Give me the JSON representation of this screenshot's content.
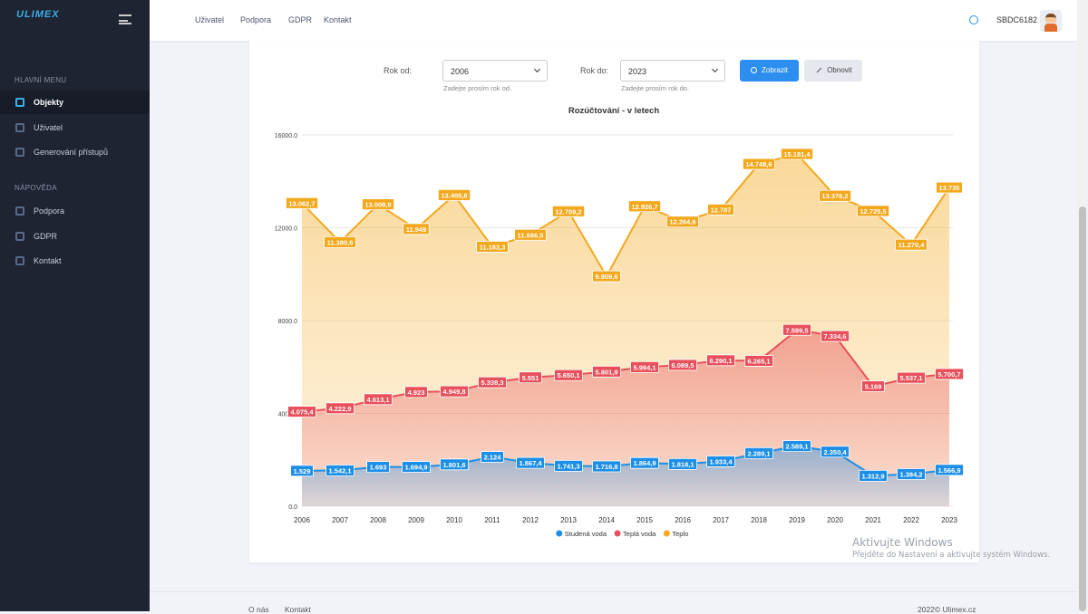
{
  "sidebar": {
    "brand": "ULIMEX",
    "sections": [
      {
        "title": "HLAVNÍ MENU",
        "items": [
          "Objekty",
          "Uživatel",
          "Generování přístupů"
        ]
      },
      {
        "title": "NÁPOVĚDA",
        "items": [
          "Podpora",
          "GDPR",
          "Kontakt"
        ]
      }
    ]
  },
  "topbar": {
    "links": [
      "Uživatel",
      "Podpora",
      "GDPR",
      "Kontakt"
    ],
    "user": "SBDC6182"
  },
  "filter": {
    "from_label": "Rok od:",
    "from_value": "2006",
    "from_hint": "Zadejte prosím rok od.",
    "to_label": "Rok do:",
    "to_value": "2023",
    "to_hint": "Zadejte prosím rok do.",
    "show_button": "Zobrazit",
    "reset_button": "Obnovit"
  },
  "chart_data": {
    "type": "area",
    "title": "Rozúčtování - v letech",
    "categories": [
      "2006",
      "2007",
      "2008",
      "2009",
      "2010",
      "2011",
      "2012",
      "2013",
      "2014",
      "2015",
      "2016",
      "2017",
      "2018",
      "2019",
      "2020",
      "2021",
      "2022",
      "2023"
    ],
    "ylim": [
      0,
      16000
    ],
    "yticks": [
      {
        "value": 0,
        "label": "0.0"
      },
      {
        "value": 4000,
        "label": "4000.0"
      },
      {
        "value": 8000,
        "label": "8000.0"
      },
      {
        "value": 12000,
        "label": "12000.0"
      },
      {
        "value": 16000,
        "label": "16000.0"
      }
    ],
    "grid": true,
    "legend": "bottom",
    "series": [
      {
        "name": "Studená voda",
        "color": "#1e8fe6",
        "values": [
          1529,
          1542.1,
          1693,
          1694.9,
          1801.6,
          2124,
          1867.4,
          1741.3,
          1716.8,
          1864.9,
          1818.1,
          1933.4,
          2289.1,
          2589.1,
          2350.4,
          1312.9,
          1384.2,
          1566.9
        ],
        "value_labels": [
          "1.529",
          "1.542,1",
          "1.693",
          "1.694,9",
          "1.801,6",
          "2.124",
          "1.867,4",
          "1.741,3",
          "1.716,8",
          "1.864,9",
          "1.818,1",
          "1.933,4",
          "2.289,1",
          "2.589,1",
          "2.350,4",
          "1.312,9",
          "1.384,2",
          "1.566,9"
        ]
      },
      {
        "name": "Teplá voda",
        "color": "#e8505b",
        "values": [
          4075.4,
          4222.9,
          4613.1,
          4923,
          4949.8,
          5338.3,
          5551,
          5650.1,
          5801.9,
          5994.1,
          6089.5,
          6290.1,
          6265.1,
          7599.5,
          7334.6,
          5169,
          5537.1,
          5700.7
        ],
        "value_labels": [
          "4.075,4",
          "4.222,9",
          "4.613,1",
          "4.923",
          "4.949,8",
          "5.338,3",
          "5.551",
          "5.650,1",
          "5.801,9",
          "5.994,1",
          "6.089,5",
          "6.290,1",
          "6.265,1",
          "7.599,5",
          "7.334,6",
          "5.169",
          "5.537,1",
          "5.700,7"
        ]
      },
      {
        "name": "Teplo",
        "color": "#f3a81d",
        "values": [
          13062.7,
          11380.6,
          13008.9,
          11949,
          13408.8,
          11182.3,
          11696.5,
          12709.2,
          9909.6,
          12926.7,
          12264.6,
          12787,
          14748.6,
          15181.4,
          13376.2,
          12725.5,
          11270.4,
          13735
        ],
        "value_labels": [
          "13.062,7",
          "11.380,6",
          "13.008,9",
          "11.949",
          "13.408,8",
          "11.182,3",
          "11.696,5",
          "12.709,2",
          "9.909,6",
          "12.926,7",
          "12.264,6",
          "12.787",
          "14.748,6",
          "15.181,4",
          "13.376,2",
          "12.725,5",
          "11.270,4",
          "13.735"
        ]
      }
    ]
  },
  "footer": {
    "links": [
      "O nás",
      "Kontakt"
    ],
    "copyright": "2022© Ulimex.cz"
  },
  "watermark": {
    "title": "Aktivujte Windows",
    "text": "Přejděte do Nastavení a aktivujte systém Windows."
  }
}
